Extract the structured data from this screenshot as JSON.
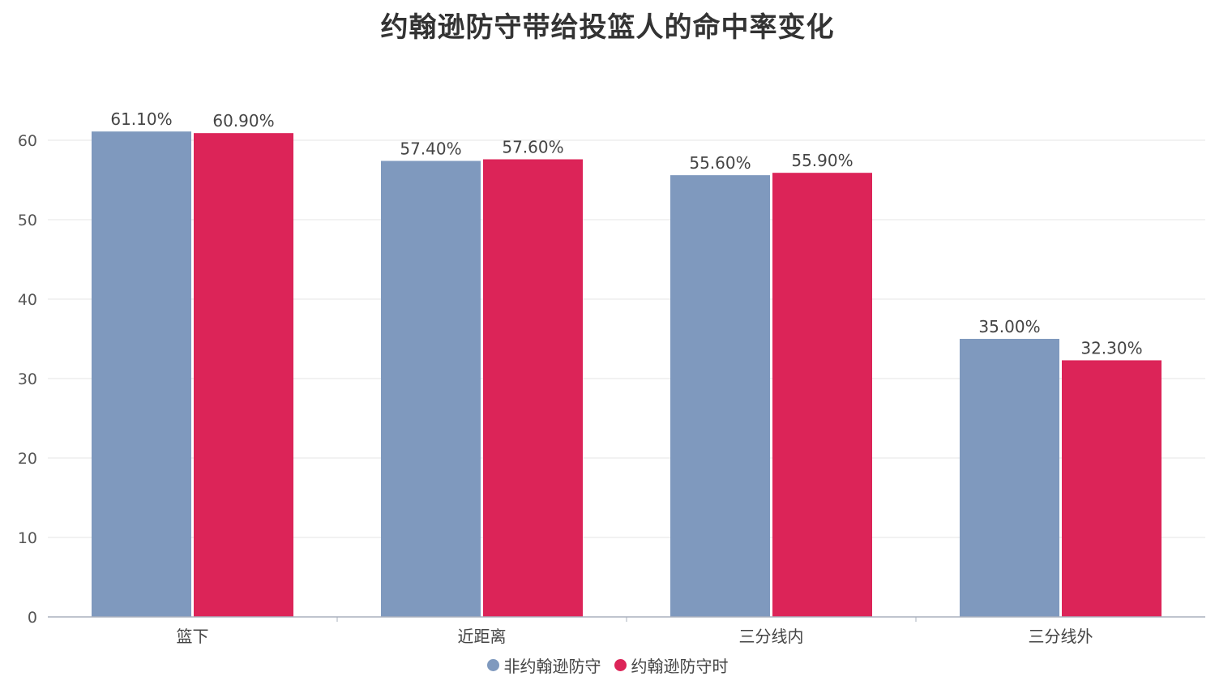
{
  "chart_data": {
    "type": "bar",
    "title": "约翰逊防守带给投篮人的命中率变化",
    "xlabel": "",
    "ylabel": "",
    "ylim": [
      0,
      60
    ],
    "yticks": [
      "0",
      "10",
      "20",
      "30",
      "40",
      "50",
      "60"
    ],
    "grid": true,
    "legend_position": "bottom",
    "categories": [
      "篮下",
      "近距离",
      "三分线内",
      "三分线外"
    ],
    "series": [
      {
        "name": "非约翰逊防守",
        "color": "#7f99be",
        "values": [
          61.1,
          57.4,
          55.6,
          35.0
        ],
        "labels": [
          "61.10%",
          "57.40%",
          "55.60%",
          "35.00%"
        ]
      },
      {
        "name": "约翰逊防守时",
        "color": "#dc2458",
        "values": [
          60.9,
          57.6,
          55.9,
          32.3
        ],
        "labels": [
          "60.90%",
          "57.60%",
          "55.90%",
          "32.30%"
        ]
      }
    ]
  }
}
